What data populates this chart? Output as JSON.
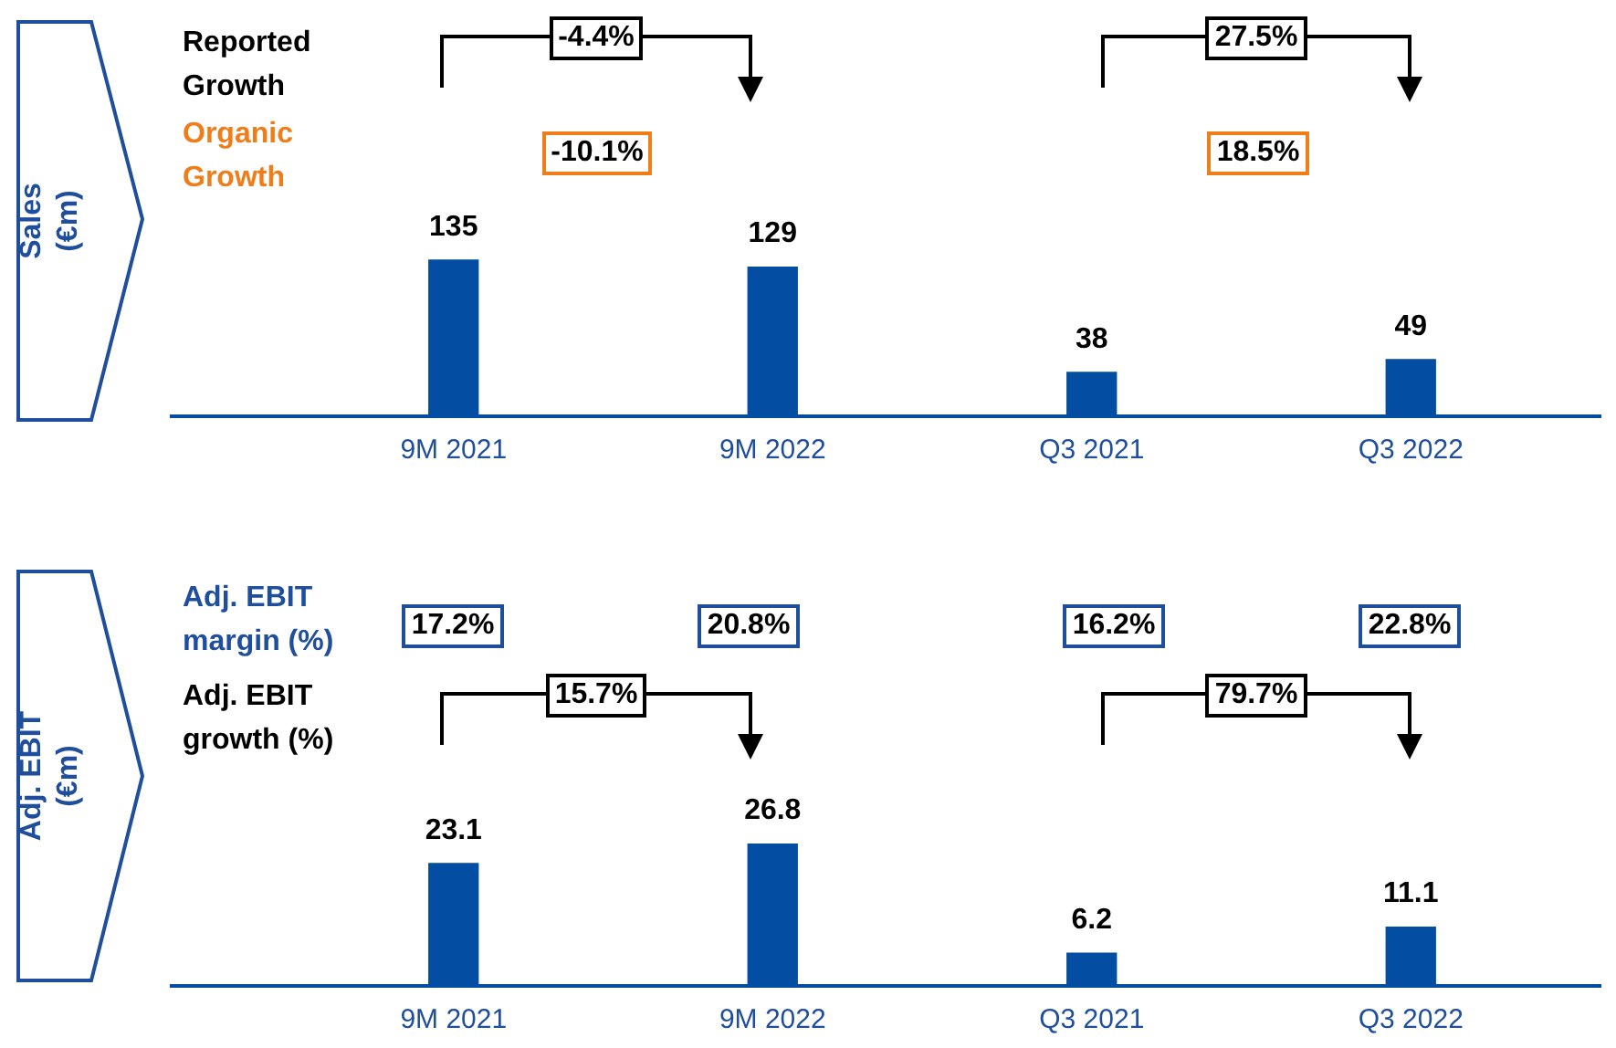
{
  "chart_data": [
    {
      "type": "bar",
      "ylabel": "Sales (€m)",
      "categories": [
        "9M 2021",
        "9M 2022",
        "Q3 2021",
        "Q3 2022"
      ],
      "values": [
        135,
        129,
        38,
        49
      ],
      "color": "#034ea2",
      "data_labels": true,
      "grid": false,
      "legend": false,
      "tick_labels": "x",
      "annotations": [
        "Reported Growth",
        "Organic Growth",
        "-4.4%",
        "-10.1%",
        "27.5%",
        "18.5%"
      ]
    },
    {
      "type": "bar",
      "ylabel": "Adj. EBIT (€m)",
      "categories": [
        "9M 2021",
        "9M 2022",
        "Q3 2021",
        "Q3 2022"
      ],
      "values": [
        23.1,
        26.8,
        6.2,
        11.1
      ],
      "color": "#034ea2",
      "data_labels": true,
      "grid": false,
      "legend": false,
      "tick_labels": "x",
      "annotations": [
        "Adj. EBIT margin (%)",
        "17.2%",
        "20.8%",
        "16.2%",
        "22.8%",
        "Adj. EBIT growth (%)",
        "15.7%",
        "79.7%"
      ]
    }
  ]
}
